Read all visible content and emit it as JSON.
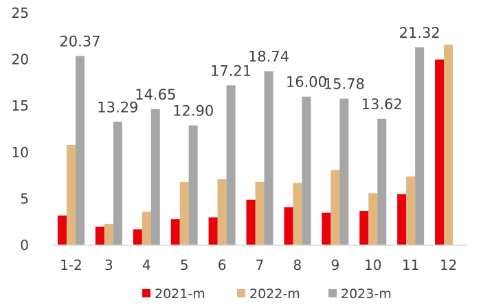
{
  "chart_data": {
    "type": "bar",
    "categories": [
      "1-2",
      "3",
      "4",
      "5",
      "6",
      "7",
      "8",
      "9",
      "10",
      "11",
      "12"
    ],
    "series": [
      {
        "name": "2021-m",
        "color": "#e8000b",
        "values": [
          3.2,
          2.0,
          1.7,
          2.8,
          3.0,
          4.9,
          4.1,
          3.5,
          3.7,
          5.5,
          20.0
        ]
      },
      {
        "name": "2022-m",
        "color": "#e1b77e",
        "values": [
          10.8,
          2.3,
          3.6,
          6.8,
          7.1,
          6.8,
          6.7,
          8.1,
          5.6,
          7.4,
          21.6
        ]
      },
      {
        "name": "2023-m",
        "color": "#a6a6a6",
        "values": [
          20.37,
          13.29,
          14.65,
          12.9,
          17.21,
          18.74,
          16.0,
          15.78,
          13.62,
          21.32,
          null
        ]
      }
    ],
    "data_labels": {
      "series": "2023-m",
      "texts": [
        "20.37",
        "13.29",
        "14.65",
        "12.90",
        "17.21",
        "18.74",
        "16.00",
        "15.78",
        "13.62",
        "21.32",
        ""
      ]
    },
    "y_ticks": [
      "0",
      "5",
      "10",
      "15",
      "20",
      "25"
    ],
    "ylim": [
      0,
      25
    ],
    "grid": false,
    "legend_position": "bottom"
  }
}
